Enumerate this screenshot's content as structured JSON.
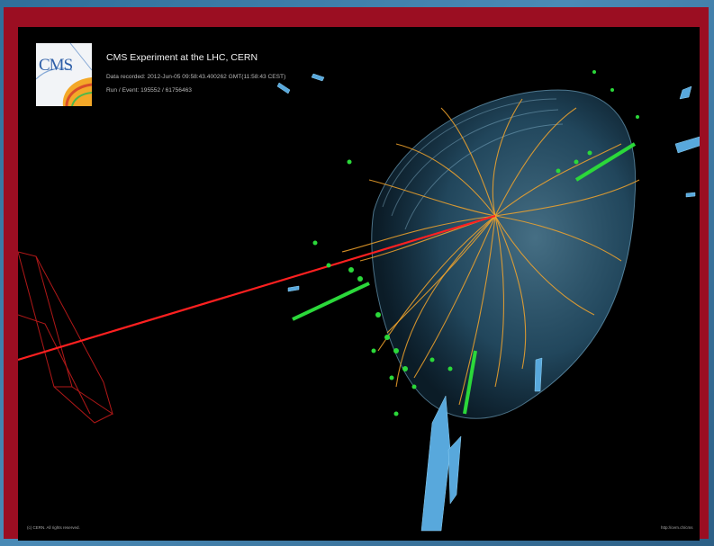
{
  "title": "CMS Experiment at the LHC, CERN",
  "data_recorded": "Data recorded: 2012-Jun-05 09:58:43.400262 GMT(11:58:43 CEST)",
  "run_event": "Run / Event: 195552 / 61756463",
  "logo_text": "CMS",
  "copyright": "(c) CERN. All rights reserved.",
  "website": "http://cern.ch/cms",
  "colors": {
    "frame": "#9b0e22",
    "background": "#000000",
    "detector": "#6fb8e6",
    "tracks": "#f3a52c",
    "hits": "#2bd83a",
    "photon": "#ff2020",
    "towers": "#58a8dc"
  }
}
